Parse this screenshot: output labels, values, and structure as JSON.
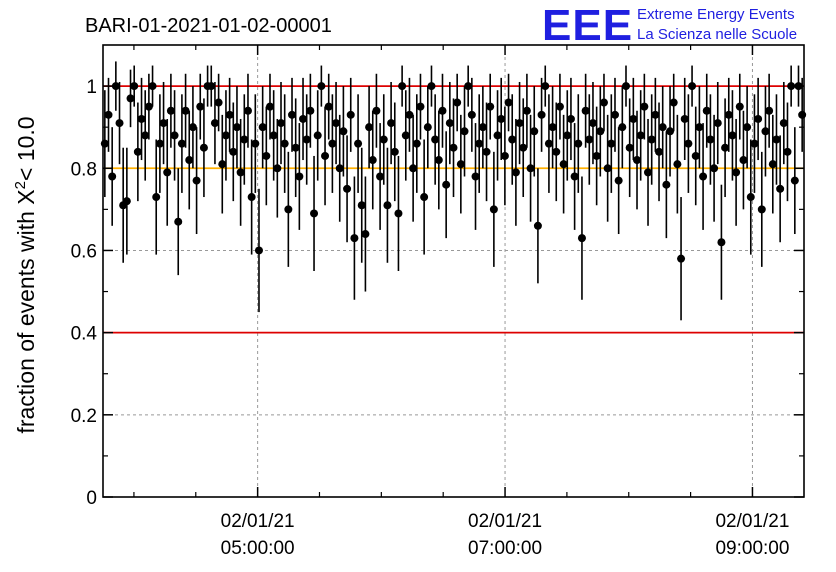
{
  "header": {
    "title": "BARI-01-2021-01-02-00001",
    "logo_text": "EEE",
    "logo_line1": "Extreme Energy Events",
    "logo_line2": "La Scienza nelle Scuole"
  },
  "colors": {
    "logo_blue": "#1f1fe0",
    "threshold_red": "#dd0000",
    "threshold_orange": "#ffb000",
    "points": "#000000",
    "grid": "#999999"
  },
  "chart_data": {
    "type": "scatter",
    "ylabel": "fraction of events with",
    "ylabel_chi": "X",
    "ylabel_exp": "2",
    "ylabel_cond": "< 10.0",
    "ylim": [
      0,
      1.1
    ],
    "yticks": [
      0,
      0.2,
      0.4,
      0.6,
      0.8,
      1
    ],
    "ytick_labels": [
      "0",
      "0.2",
      "0.4",
      "0.6",
      "0.8",
      "1"
    ],
    "xlim": [
      "2021-01-02 03:45:00",
      "2021-01-02 09:25:00"
    ],
    "xticks": [
      {
        "date": "02/01/21",
        "time": "05:00:00"
      },
      {
        "date": "02/01/21",
        "time": "07:00:00"
      },
      {
        "date": "02/01/21",
        "time": "09:00:00"
      }
    ],
    "threshold_lines": [
      {
        "y": 1.0,
        "color": "red"
      },
      {
        "y": 0.8,
        "color": "orange"
      },
      {
        "y": 0.4,
        "color": "red"
      }
    ],
    "grid": true,
    "series": [
      {
        "x_start": "2021-01-02 03:45:00",
        "x_end": "2021-01-02 09:25:00",
        "points": [
          [
            0.86,
            0.13
          ],
          [
            0.93,
            0.09
          ],
          [
            0.78,
            0.12
          ],
          [
            1.0,
            0.06
          ],
          [
            0.91,
            0.1
          ],
          [
            0.71,
            0.14
          ],
          [
            0.72,
            0.13
          ],
          [
            0.97,
            0.07
          ],
          [
            1.0,
            0.05
          ],
          [
            0.84,
            0.12
          ],
          [
            0.92,
            0.1
          ],
          [
            0.88,
            0.11
          ],
          [
            0.95,
            0.08
          ],
          [
            1.0,
            0.05
          ],
          [
            0.73,
            0.14
          ],
          [
            0.86,
            0.12
          ],
          [
            0.91,
            0.1
          ],
          [
            0.79,
            0.13
          ],
          [
            0.94,
            0.09
          ],
          [
            0.88,
            0.11
          ],
          [
            0.67,
            0.13
          ],
          [
            0.86,
            0.12
          ],
          [
            0.94,
            0.09
          ],
          [
            0.82,
            0.12
          ],
          [
            0.9,
            0.1
          ],
          [
            0.77,
            0.13
          ],
          [
            0.95,
            0.08
          ],
          [
            0.85,
            0.12
          ],
          [
            1.0,
            0.05
          ],
          [
            1.0,
            0.05
          ],
          [
            0.91,
            0.1
          ],
          [
            0.96,
            0.07
          ],
          [
            0.81,
            0.12
          ],
          [
            0.88,
            0.11
          ],
          [
            0.93,
            0.09
          ],
          [
            0.84,
            0.12
          ],
          [
            0.9,
            0.1
          ],
          [
            0.79,
            0.13
          ],
          [
            0.87,
            0.11
          ],
          [
            0.94,
            0.09
          ],
          [
            0.73,
            0.14
          ],
          [
            0.86,
            0.12
          ],
          [
            0.6,
            0.15
          ],
          [
            0.9,
            0.1
          ],
          [
            0.83,
            0.12
          ],
          [
            0.95,
            0.08
          ],
          [
            0.88,
            0.11
          ],
          [
            0.8,
            0.12
          ],
          [
            0.91,
            0.1
          ],
          [
            0.86,
            0.12
          ],
          [
            0.7,
            0.14
          ],
          [
            0.93,
            0.09
          ],
          [
            0.85,
            0.12
          ],
          [
            0.78,
            0.13
          ],
          [
            0.92,
            0.1
          ],
          [
            0.87,
            0.11
          ],
          [
            0.94,
            0.09
          ],
          [
            0.69,
            0.14
          ],
          [
            0.88,
            0.11
          ],
          [
            1.0,
            0.05
          ],
          [
            0.83,
            0.12
          ],
          [
            0.95,
            0.08
          ],
          [
            0.86,
            0.12
          ],
          [
            0.91,
            0.1
          ],
          [
            0.8,
            0.13
          ],
          [
            0.89,
            0.11
          ],
          [
            0.75,
            0.13
          ],
          [
            0.93,
            0.09
          ],
          [
            0.63,
            0.15
          ],
          [
            0.86,
            0.12
          ],
          [
            0.71,
            0.14
          ],
          [
            0.64,
            0.14
          ],
          [
            0.9,
            0.1
          ],
          [
            0.82,
            0.12
          ],
          [
            0.94,
            0.09
          ],
          [
            0.78,
            0.13
          ],
          [
            0.87,
            0.11
          ],
          [
            0.71,
            0.14
          ],
          [
            0.91,
            0.1
          ],
          [
            0.84,
            0.12
          ],
          [
            0.69,
            0.14
          ],
          [
            1.0,
            0.05
          ],
          [
            0.88,
            0.11
          ],
          [
            0.93,
            0.09
          ],
          [
            0.8,
            0.13
          ],
          [
            0.86,
            0.12
          ],
          [
            0.95,
            0.08
          ],
          [
            0.73,
            0.14
          ],
          [
            0.9,
            0.1
          ],
          [
            1.0,
            0.05
          ],
          [
            0.87,
            0.11
          ],
          [
            0.82,
            0.12
          ],
          [
            0.94,
            0.09
          ],
          [
            0.76,
            0.13
          ],
          [
            0.91,
            0.1
          ],
          [
            0.85,
            0.12
          ],
          [
            0.96,
            0.07
          ],
          [
            0.81,
            0.12
          ],
          [
            0.89,
            0.11
          ],
          [
            1.0,
            0.05
          ],
          [
            0.93,
            0.09
          ],
          [
            0.78,
            0.13
          ],
          [
            0.86,
            0.12
          ],
          [
            0.9,
            0.1
          ],
          [
            0.84,
            0.12
          ],
          [
            0.95,
            0.08
          ],
          [
            0.7,
            0.14
          ],
          [
            0.88,
            0.11
          ],
          [
            0.92,
            0.1
          ],
          [
            0.83,
            0.12
          ],
          [
            0.96,
            0.07
          ],
          [
            0.87,
            0.11
          ],
          [
            0.79,
            0.13
          ],
          [
            0.91,
            0.1
          ],
          [
            0.85,
            0.12
          ],
          [
            0.94,
            0.09
          ],
          [
            0.8,
            0.13
          ],
          [
            0.89,
            0.11
          ],
          [
            0.66,
            0.14
          ],
          [
            0.93,
            0.09
          ],
          [
            1.0,
            0.05
          ],
          [
            0.86,
            0.12
          ],
          [
            0.9,
            0.1
          ],
          [
            0.84,
            0.12
          ],
          [
            0.95,
            0.08
          ],
          [
            0.81,
            0.12
          ],
          [
            0.88,
            0.11
          ],
          [
            0.92,
            0.1
          ],
          [
            0.78,
            0.13
          ],
          [
            0.86,
            0.12
          ],
          [
            0.63,
            0.15
          ],
          [
            0.94,
            0.09
          ],
          [
            0.87,
            0.11
          ],
          [
            0.91,
            0.1
          ],
          [
            0.83,
            0.12
          ],
          [
            0.89,
            0.11
          ],
          [
            0.96,
            0.07
          ],
          [
            0.8,
            0.13
          ],
          [
            0.86,
            0.12
          ],
          [
            0.93,
            0.09
          ],
          [
            0.77,
            0.13
          ],
          [
            0.9,
            0.1
          ],
          [
            1.0,
            0.05
          ],
          [
            0.85,
            0.12
          ],
          [
            0.92,
            0.1
          ],
          [
            0.82,
            0.12
          ],
          [
            0.88,
            0.11
          ],
          [
            0.95,
            0.08
          ],
          [
            0.79,
            0.13
          ],
          [
            0.87,
            0.11
          ],
          [
            0.93,
            0.09
          ],
          [
            0.84,
            0.12
          ],
          [
            0.9,
            0.1
          ],
          [
            0.76,
            0.13
          ],
          [
            0.89,
            0.11
          ],
          [
            0.96,
            0.07
          ],
          [
            0.81,
            0.12
          ],
          [
            0.58,
            0.15
          ],
          [
            0.92,
            0.1
          ],
          [
            0.86,
            0.12
          ],
          [
            1.0,
            0.05
          ],
          [
            0.83,
            0.12
          ],
          [
            0.9,
            0.1
          ],
          [
            0.78,
            0.13
          ],
          [
            0.94,
            0.09
          ],
          [
            0.87,
            0.11
          ],
          [
            0.8,
            0.13
          ],
          [
            0.91,
            0.1
          ],
          [
            0.62,
            0.14
          ],
          [
            0.85,
            0.12
          ],
          [
            0.93,
            0.09
          ],
          [
            0.88,
            0.11
          ],
          [
            0.79,
            0.13
          ],
          [
            0.95,
            0.08
          ],
          [
            0.82,
            0.12
          ],
          [
            0.9,
            0.1
          ],
          [
            0.73,
            0.14
          ],
          [
            0.86,
            0.12
          ],
          [
            0.92,
            0.1
          ],
          [
            0.7,
            0.14
          ],
          [
            0.89,
            0.11
          ],
          [
            0.94,
            0.09
          ],
          [
            0.81,
            0.12
          ],
          [
            0.87,
            0.11
          ],
          [
            0.75,
            0.13
          ],
          [
            0.91,
            0.1
          ],
          [
            0.84,
            0.12
          ],
          [
            1.0,
            0.05
          ],
          [
            0.77,
            0.13
          ],
          [
            1.0,
            0.05
          ],
          [
            0.93,
            0.09
          ]
        ]
      }
    ]
  }
}
